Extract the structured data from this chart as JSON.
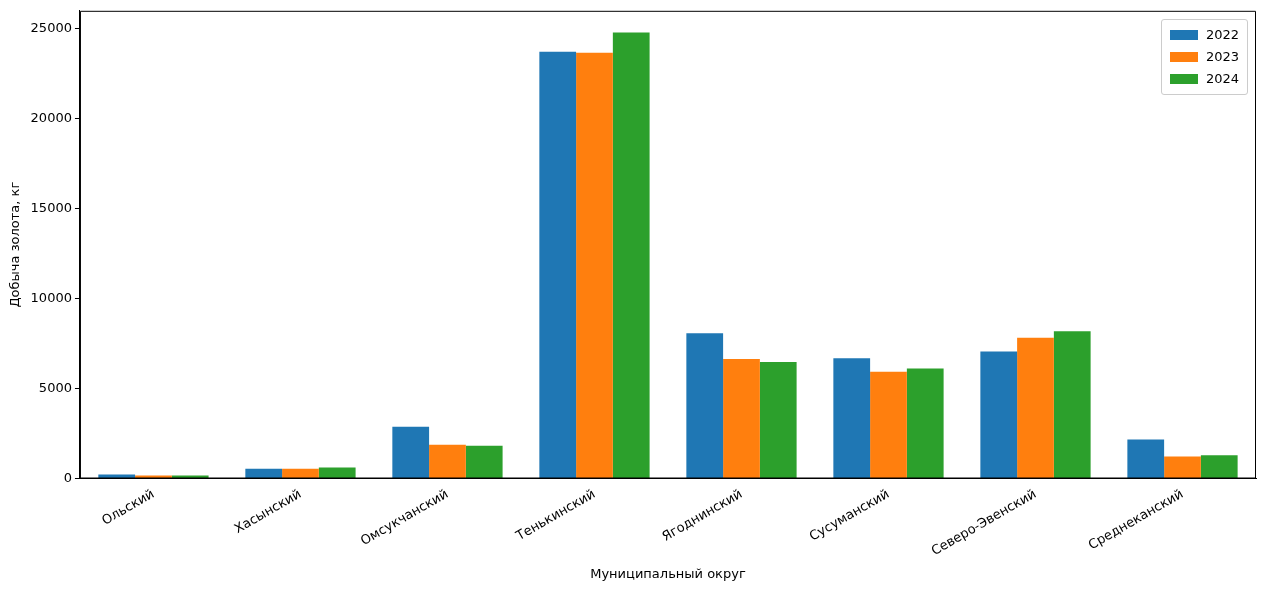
{
  "chart_data": {
    "type": "bar",
    "xlabel": "Муниципальный округ",
    "ylabel": "Добыча золота, кг",
    "categories": [
      "Ольский",
      "Хасынский",
      "Омсукчанский",
      "Тенькинский",
      "Ягоднинский",
      "Сусуманский",
      "Северо-Эвенский",
      "Среднеканский"
    ],
    "series": [
      {
        "name": "2022",
        "color": "#1f77b4",
        "values": [
          220,
          540,
          2880,
          23720,
          8070,
          6690,
          7060,
          2170
        ]
      },
      {
        "name": "2023",
        "color": "#ff7f0e",
        "values": [
          170,
          540,
          1880,
          23670,
          6650,
          5930,
          7820,
          1220
        ]
      },
      {
        "name": "2024",
        "color": "#2ca02c",
        "values": [
          170,
          610,
          1820,
          24790,
          6470,
          6120,
          8180,
          1290
        ]
      }
    ],
    "ylim": [
      0,
      26000
    ],
    "yticks": [
      0,
      5000,
      10000,
      15000,
      20000,
      25000
    ],
    "legend": "top right",
    "grid": false
  }
}
